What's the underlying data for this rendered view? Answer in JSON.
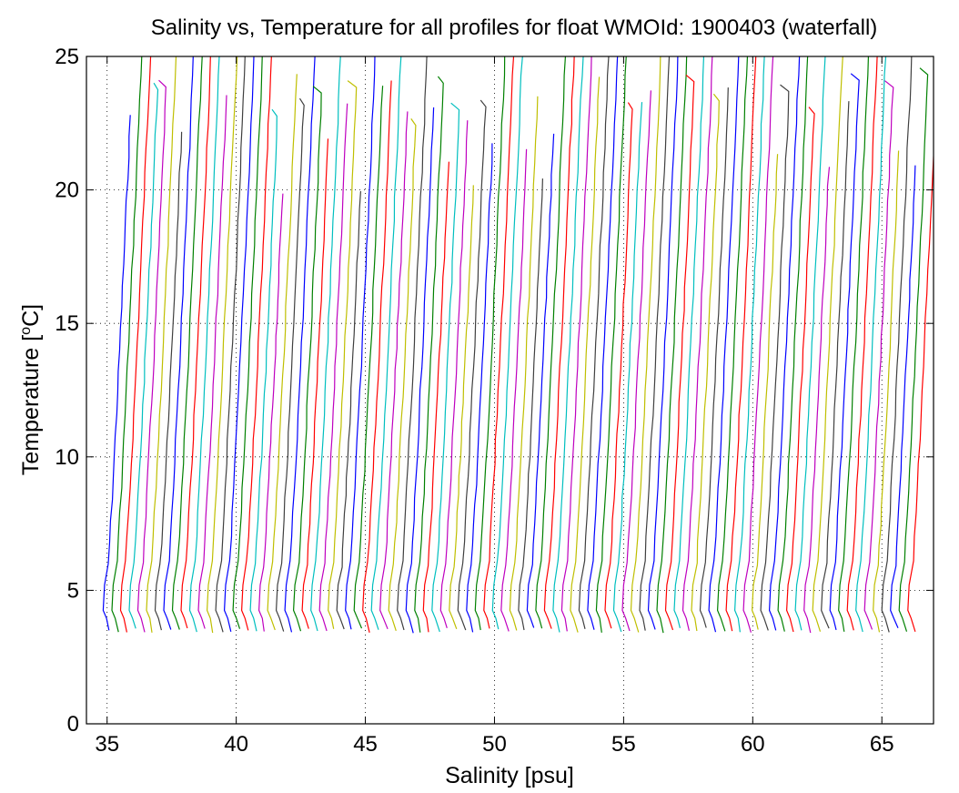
{
  "chart_data": {
    "type": "line",
    "title": "Salinity vs, Temperature for all profiles for float WMOId: 1900403 (waterfall)",
    "xlabel": "Salinity [psu]",
    "ylabel_main": "Temperature [",
    "ylabel_sup": "o",
    "ylabel_end": "C]",
    "xlim": [
      34.2,
      67.0
    ],
    "ylim": [
      0,
      25
    ],
    "xticks": [
      35,
      40,
      45,
      50,
      55,
      60,
      65
    ],
    "yticks": [
      0,
      5,
      10,
      15,
      20,
      25
    ],
    "grid": true,
    "grid_style": "dotted",
    "waterfall": {
      "profile_count": 94,
      "first_profile_surface_salinity": 36.0,
      "offset_per_profile_psu": 0.335,
      "deep_salinity_first": 34.9,
      "deep_temperature": 4.0,
      "bottom_temperature_range": [
        3.4,
        3.6
      ],
      "surface_temperature_range": [
        19.8,
        25.0
      ]
    },
    "color_cycle": [
      "#0000ff",
      "#008000",
      "#ff0000",
      "#00bfbf",
      "#bf00bf",
      "#bfbf00",
      "#404040"
    ]
  }
}
